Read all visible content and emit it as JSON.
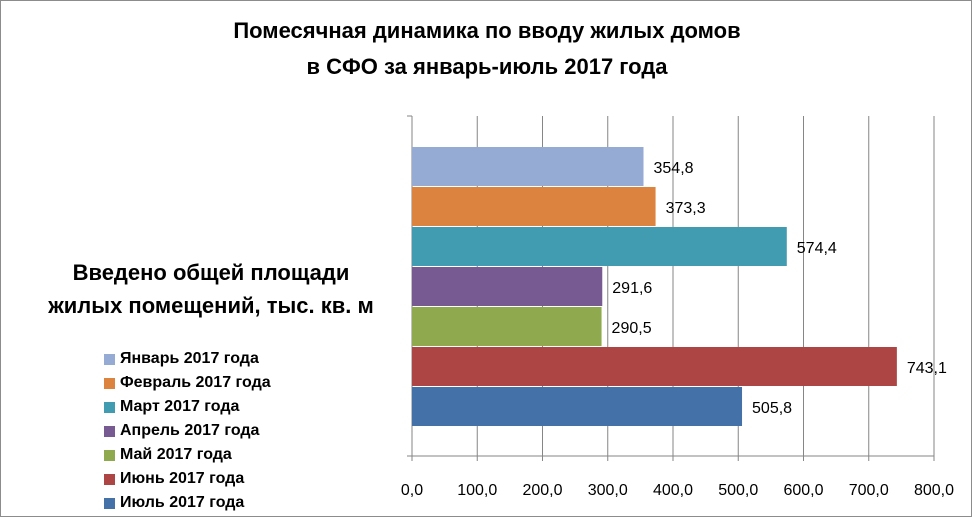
{
  "chart_data": {
    "type": "bar",
    "orientation": "horizontal",
    "title_lines": [
      "Помесячная динамика по вводу жилых домов",
      "в СФО за январь-июль 2017 года"
    ],
    "ylabel_lines": [
      "Введено общей площади",
      "жилых помещений, тыс. кв. м"
    ],
    "series": [
      {
        "name": "Январь 2017 года",
        "value": 354.8,
        "label": "354,8",
        "color": "#95abd4"
      },
      {
        "name": "Февраль 2017 года",
        "value": 373.3,
        "label": "373,3",
        "color": "#dc843f"
      },
      {
        "name": "Март 2017 года",
        "value": 574.4,
        "label": "574,4",
        "color": "#429cb1"
      },
      {
        "name": "Апрель 2017 года",
        "value": 291.6,
        "label": "291,6",
        "color": "#765a91"
      },
      {
        "name": "Май 2017 года",
        "value": 290.5,
        "label": "290,5",
        "color": "#8ea94e"
      },
      {
        "name": "Июнь 2017 года",
        "value": 743.1,
        "label": "743,1",
        "color": "#ad4544"
      },
      {
        "name": "Июль 2017 года",
        "value": 505.8,
        "label": "505,8",
        "color": "#4472a8"
      }
    ],
    "xlim": [
      0,
      800
    ],
    "ticks": [
      0,
      100,
      200,
      300,
      400,
      500,
      600,
      700,
      800
    ],
    "tick_labels": [
      "0,0",
      "100,0",
      "200,0",
      "300,0",
      "400,0",
      "500,0",
      "600,0",
      "700,0",
      "800,0"
    ],
    "grid": true,
    "legend_position": "left-bottom"
  }
}
